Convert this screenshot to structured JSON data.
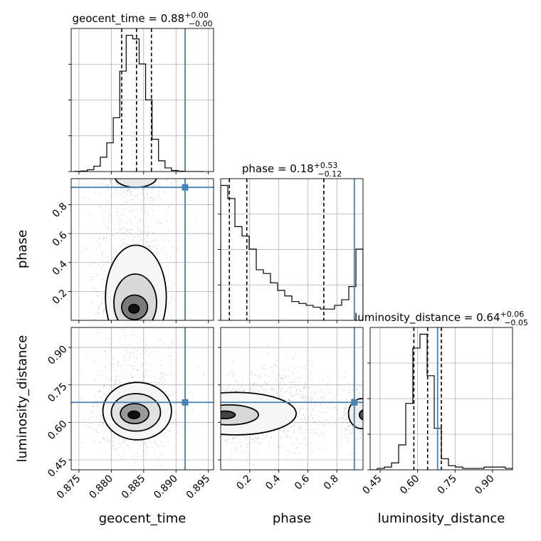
{
  "chart_data": [
    {
      "type": "histogram",
      "parameter": "geocent_time",
      "title": {
        "text": "geocent_time = 0.88",
        "plus": "+0.00",
        "minus": "−0.00"
      },
      "xlim": [
        0.8738,
        0.8958
      ],
      "bins": [
        0.8743,
        0.8753,
        0.8763,
        0.8773,
        0.8783,
        0.8793,
        0.8803,
        0.8813,
        0.8823,
        0.8833,
        0.8843,
        0.8853,
        0.8863,
        0.8873,
        0.8883,
        0.8893,
        0.8903,
        0.8913,
        0.8923,
        0.8933,
        0.8943
      ],
      "counts": [
        1,
        3,
        10,
        30,
        80,
        160,
        300,
        560,
        760,
        740,
        600,
        400,
        180,
        60,
        20,
        6,
        2,
        0,
        0,
        0
      ],
      "quantiles": [
        0.8816,
        0.8839,
        0.8862
      ],
      "truth": 0.8914
    },
    {
      "type": "histogram",
      "parameter": "phase",
      "title": {
        "text": "phase = 0.18",
        "plus": "+0.53",
        "minus": "−0.12"
      },
      "xlim": [
        0.0,
        0.98
      ],
      "bins": [
        0.0,
        0.049,
        0.098,
        0.147,
        0.196,
        0.245,
        0.294,
        0.343,
        0.392,
        0.441,
        0.49,
        0.539,
        0.588,
        0.637,
        0.686,
        0.735,
        0.784,
        0.833,
        0.882,
        0.931,
        0.98
      ],
      "counts": [
        72,
        65,
        50,
        45,
        38,
        27,
        25,
        20,
        16,
        13,
        10,
        9,
        8,
        7,
        6,
        6,
        8,
        11,
        18,
        38
      ],
      "quantiles": [
        0.06,
        0.18,
        0.71
      ],
      "truth": 0.92
    },
    {
      "type": "histogram",
      "parameter": "luminosity_distance",
      "title": {
        "text": "luminosity_distance = 0.64",
        "plus": "+0.06",
        "minus": "−0.05"
      },
      "xlim": [
        0.41,
        0.98
      ],
      "bins": [
        0.41,
        0.4385,
        0.467,
        0.4955,
        0.524,
        0.5525,
        0.581,
        0.6095,
        0.638,
        0.6665,
        0.695,
        0.7235,
        0.752,
        0.7805,
        0.809,
        0.8375,
        0.866,
        0.8945,
        0.923,
        0.9515,
        0.98
      ],
      "counts": [
        0,
        1,
        2,
        5,
        18,
        48,
        88,
        98,
        68,
        30,
        8,
        3,
        2,
        1,
        1,
        1,
        2,
        2,
        2,
        1
      ],
      "quantiles": [
        0.585,
        0.64,
        0.695
      ],
      "truth": 0.68
    },
    {
      "type": "2d_density",
      "x": "geocent_time",
      "y": "phase",
      "xlim": [
        0.8738,
        0.8958
      ],
      "ylim": [
        0.0,
        0.98
      ],
      "modes": [
        {
          "x": 0.8835,
          "y": 0.08
        },
        {
          "x": 0.8835,
          "y": 0.96
        }
      ],
      "truth": {
        "x": 0.8914,
        "y": 0.92
      }
    },
    {
      "type": "2d_density",
      "x": "geocent_time",
      "y": "luminosity_distance",
      "xlim": [
        0.8738,
        0.8958
      ],
      "ylim": [
        0.41,
        0.98
      ],
      "modes": [
        {
          "x": 0.8835,
          "y": 0.63
        }
      ],
      "truth": {
        "x": 0.8914,
        "y": 0.68
      }
    },
    {
      "type": "2d_density",
      "x": "phase",
      "y": "luminosity_distance",
      "xlim": [
        0.0,
        0.98
      ],
      "ylim": [
        0.41,
        0.98
      ],
      "modes": [
        {
          "x": 0.04,
          "y": 0.63
        },
        {
          "x": 0.96,
          "y": 0.63
        }
      ],
      "truth": {
        "x": 0.92,
        "y": 0.68
      }
    }
  ],
  "axes": {
    "geocent_time": {
      "label": "geocent_time",
      "ticks": [
        0.875,
        0.88,
        0.885,
        0.89,
        0.895
      ],
      "tick_labels": [
        "0.875",
        "0.880",
        "0.885",
        "0.890",
        "0.895"
      ]
    },
    "phase": {
      "label": "phase",
      "ticks": [
        0.2,
        0.4,
        0.6,
        0.8
      ],
      "tick_labels": [
        "0.2",
        "0.4",
        "0.6",
        "0.8"
      ]
    },
    "luminosity_distance": {
      "label": "luminosity_distance",
      "ticks": [
        0.45,
        0.6,
        0.75,
        0.9
      ],
      "tick_labels": [
        "0.45",
        "0.60",
        "0.75",
        "0.90"
      ]
    }
  },
  "colors": {
    "truth": "#4682b4",
    "hist": "#000000",
    "scatter": "#000000",
    "quantile": "#000000"
  }
}
